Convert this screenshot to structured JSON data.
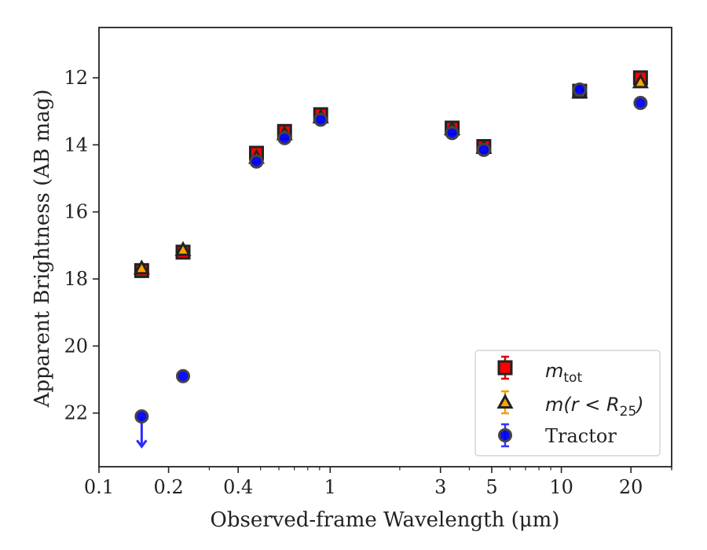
{
  "chart_data": {
    "type": "scatter",
    "title": "",
    "xlabel": "Observed-frame Wavelength (μm)",
    "ylabel": "Apparent Brightness (AB mag)",
    "xscale": "log",
    "xlim": [
      0.1,
      30
    ],
    "ylim": [
      23.6,
      10.5
    ],
    "y_inverted": true,
    "grid": false,
    "legend_position": "lower-right",
    "xticks": [
      0.1,
      0.2,
      0.4,
      1,
      3,
      5,
      10,
      20
    ],
    "xtick_labels": [
      "0.1",
      "0.2",
      "0.4",
      "1",
      "3",
      "5",
      "10",
      "20"
    ],
    "yticks": [
      12,
      14,
      16,
      18,
      20,
      22
    ],
    "ytick_labels": [
      "12",
      "14",
      "16",
      "18",
      "20",
      "22"
    ],
    "series": [
      {
        "name": "m_tot",
        "legend_label": {
          "base": "m",
          "sub": "tot"
        },
        "marker": "square",
        "color": "#ff0000",
        "edge": "#222222",
        "x": [
          0.153,
          0.231,
          0.48,
          0.635,
          0.91,
          3.37,
          4.62,
          12.0,
          22.0
        ],
        "y": [
          17.75,
          17.2,
          14.25,
          13.6,
          13.1,
          13.5,
          14.05,
          12.4,
          12.0
        ]
      },
      {
        "name": "m(r < R_25)",
        "legend_label": {
          "base": "m(r < R",
          "sub": "25",
          "tail": ")"
        },
        "marker": "triangle",
        "color": "#ffa500",
        "edge": "#222222",
        "x": [
          0.153,
          0.231,
          0.48,
          0.635,
          0.91,
          3.37,
          4.62,
          12.0,
          22.0
        ],
        "y": [
          17.7,
          17.15,
          14.4,
          13.7,
          13.2,
          13.55,
          14.1,
          12.45,
          12.15
        ]
      },
      {
        "name": "Tractor",
        "marker": "circle",
        "color": "#0000ff",
        "edge": "#444444",
        "x": [
          0.153,
          0.231,
          0.48,
          0.635,
          0.91,
          3.37,
          4.62,
          12.0,
          22.0
        ],
        "y": [
          22.1,
          20.9,
          14.5,
          13.8,
          13.25,
          13.65,
          14.15,
          12.35,
          12.75
        ],
        "upper_limit_index": 0,
        "upper_limit_arrow_to": 23.0
      }
    ],
    "colors": {
      "axis": "#222222",
      "legend_border": "#cccccc"
    }
  }
}
